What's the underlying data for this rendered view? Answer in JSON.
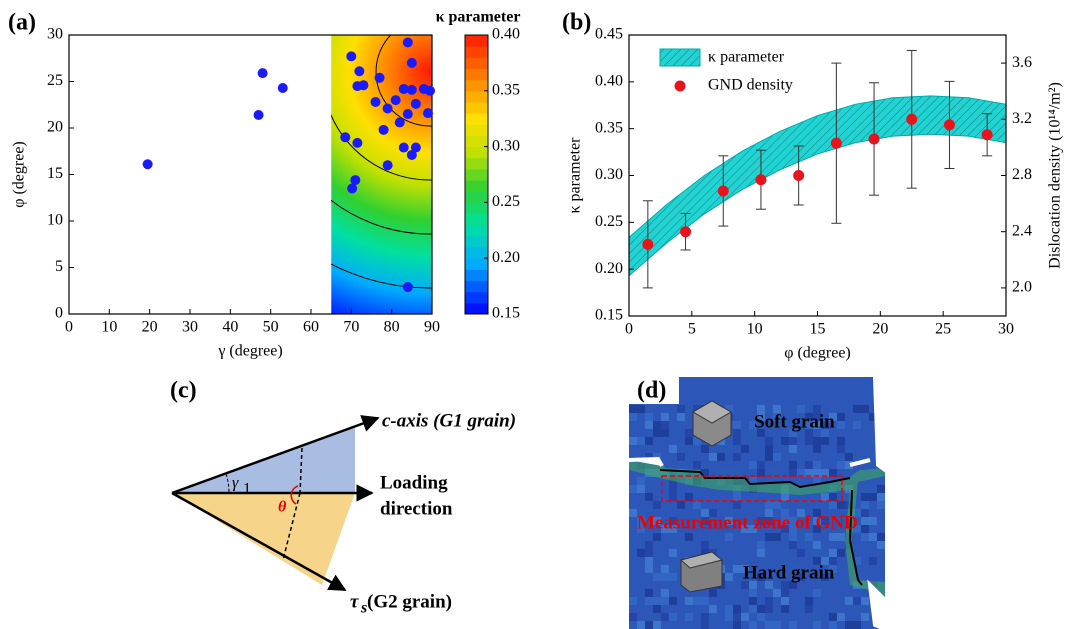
{
  "chart_data": [
    {
      "type": "scatter",
      "panel": "(a)",
      "x_label": "γ (degree)",
      "y_label": "φ (degree)",
      "color": "#1a1aff",
      "x": [
        19.5,
        48,
        53,
        47,
        70,
        72,
        71.5,
        73,
        77,
        76,
        79,
        81,
        83,
        85,
        88,
        89.5,
        84,
        85,
        86,
        84,
        89,
        82,
        78,
        83,
        86,
        85,
        71.5,
        68.5,
        79,
        71,
        70.2,
        84
      ],
      "values": [
        16.1,
        25.9,
        24.3,
        21.4,
        27.7,
        26.1,
        24.5,
        24.6,
        25.4,
        22.8,
        22.1,
        23,
        24.2,
        24.1,
        24.2,
        24,
        29.2,
        27,
        22.6,
        21.5,
        21.6,
        20.6,
        19.8,
        17.9,
        17.9,
        17.1,
        18.4,
        19,
        16,
        14.4,
        13.5,
        2.9
      ],
      "xlim": [
        0,
        90
      ],
      "xticks": [
        0,
        10,
        20,
        30,
        40,
        50,
        60,
        70,
        80,
        90
      ],
      "ylim": [
        0,
        30
      ],
      "yticks": [
        0,
        5,
        10,
        15,
        20,
        25,
        30
      ],
      "map_xlim": [
        65,
        90
      ],
      "colorbar": {
        "label": "κ parameter",
        "lim": [
          0.15,
          0.4
        ],
        "ticks": [
          0.15,
          {
            "value": 0.2,
            "label": "0.20"
          },
          0.25,
          {
            "value": 0.3,
            "label": "0.30"
          },
          0.35,
          {
            "value": 0.4,
            "label": "0.40"
          }
        ]
      }
    },
    {
      "type": "band-errorbar",
      "panel": "(b)",
      "x_label": "φ (degree)",
      "y_label": "κ parameter",
      "y2_label": "Dislocation density (10¹⁴/m²)",
      "xlim": [
        0,
        30
      ],
      "xticks": [
        0,
        5,
        10,
        15,
        20,
        25,
        30
      ],
      "ylim": [
        0.15,
        0.45
      ],
      "yticks": [
        0.15,
        {
          "value": 0.2,
          "label": "0.20"
        },
        0.25,
        {
          "value": 0.3,
          "label": "0.30"
        },
        0.35,
        {
          "value": 0.4,
          "label": "0.40"
        },
        0.45
      ],
      "y2lim": [
        1.8,
        3.8
      ],
      "y2ticks": [
        {
          "value": 2,
          "label": "2.0"
        },
        2.4,
        2.8,
        3.2,
        3.6
      ],
      "series": [
        {
          "name": "κ parameter",
          "color": "#22d3d3",
          "x": [
            0,
            3,
            6,
            9,
            12,
            15,
            18,
            21,
            24,
            27,
            30
          ],
          "upper": [
            0.234,
            0.269,
            0.3,
            0.326,
            0.347,
            0.364,
            0.376,
            0.383,
            0.385,
            0.383,
            0.376
          ],
          "lower": [
            0.193,
            0.228,
            0.259,
            0.285,
            0.306,
            0.323,
            0.335,
            0.342,
            0.344,
            0.342,
            0.335
          ]
        },
        {
          "name": "GND density",
          "color": "#e8141c",
          "axis": "y2",
          "x": [
            1.5,
            4.5,
            7.5,
            10.5,
            13.5,
            16.5,
            19.5,
            22.5,
            25.5,
            28.5
          ],
          "values": [
            2.31,
            2.4,
            2.69,
            2.77,
            2.8,
            3.03,
            3.06,
            3.2,
            3.16,
            3.09
          ],
          "errors": [
            0.31,
            0.13,
            0.25,
            0.21,
            0.21,
            0.57,
            0.4,
            0.49,
            0.31,
            0.15
          ]
        }
      ]
    }
  ],
  "diagram_c": {
    "panel": "(c)",
    "c_axis": "c-axis (G1 grain)",
    "loading_1": "Loading",
    "loading_2": "direction",
    "gamma": "γ",
    "gamma_sub": "1",
    "theta": "θ",
    "tau": "τ",
    "tau_sub": "s",
    "tau_rest": " (G2 grain)"
  },
  "map_d": {
    "panel": "(d)",
    "soft": "Soft grain",
    "hard": "Hard grain",
    "zone": "Measurement zone of GND"
  }
}
